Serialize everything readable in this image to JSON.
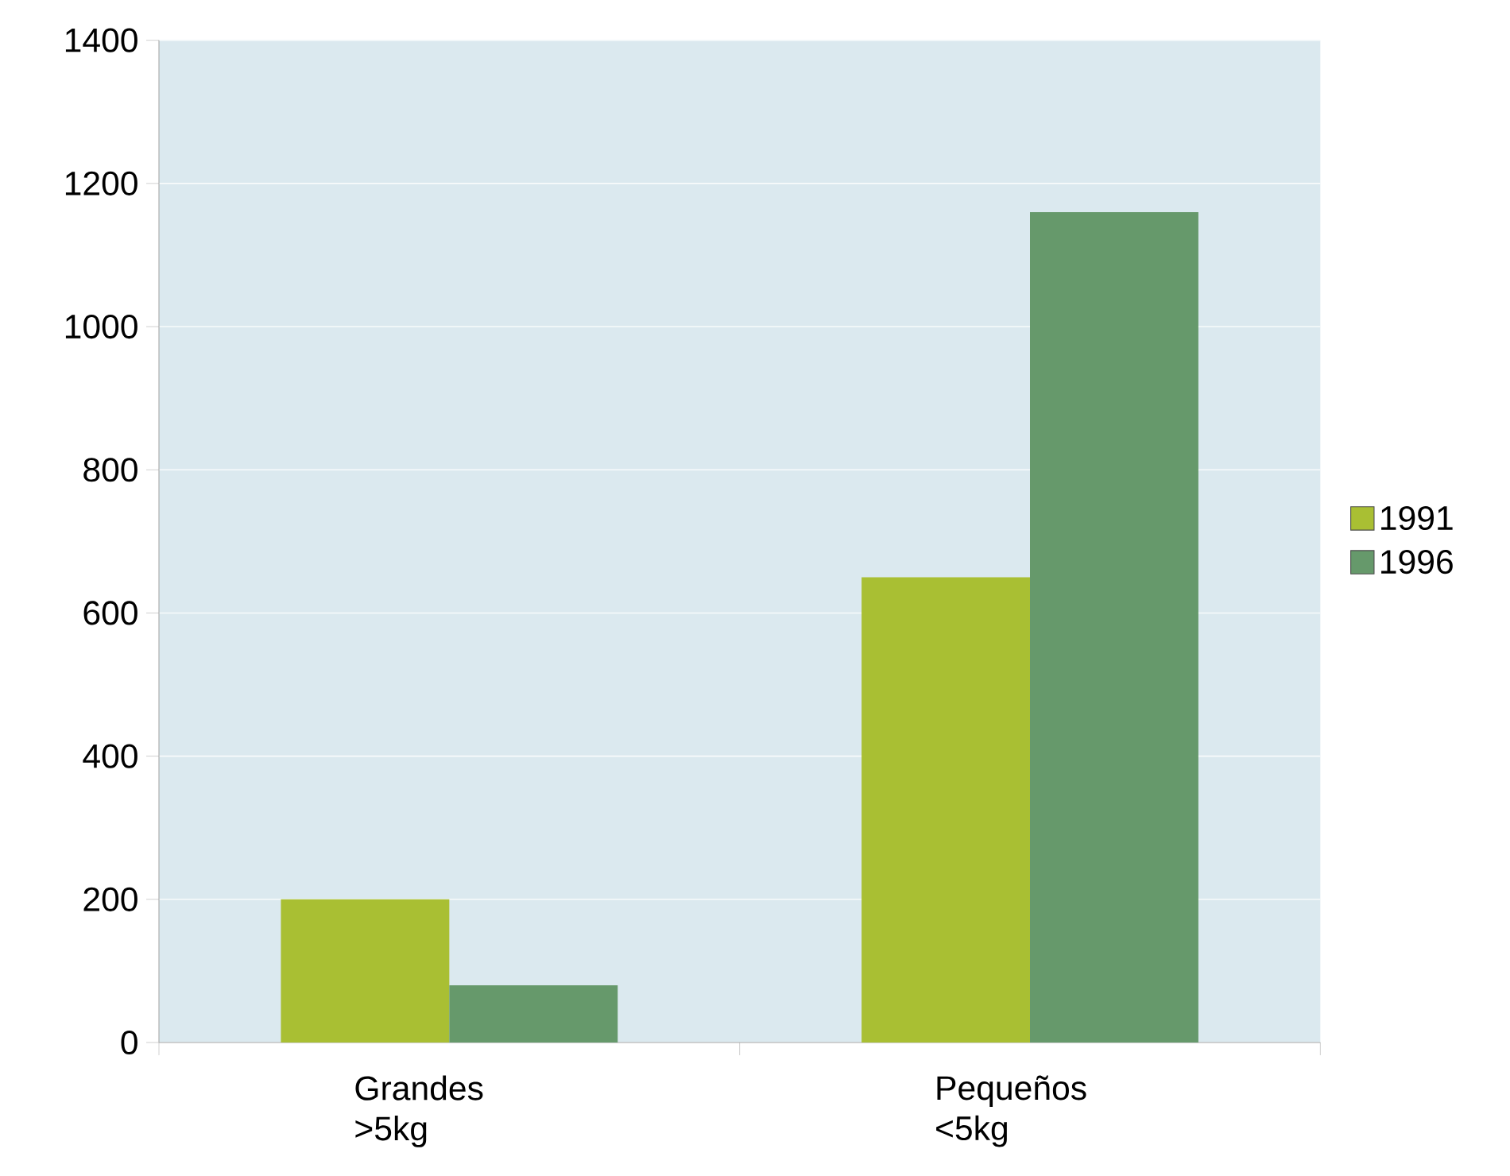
{
  "chart_data": {
    "type": "bar",
    "categories": [
      "Grandes >5kg",
      "Pequeños <5kg"
    ],
    "series": [
      {
        "name": "1991",
        "color": "#a9bf33",
        "values": [
          200,
          650
        ]
      },
      {
        "name": "1996",
        "color": "#66996b",
        "values": [
          80,
          1160
        ]
      }
    ],
    "ylim": [
      0,
      1400
    ],
    "yticks": [
      0,
      200,
      400,
      600,
      800,
      1000,
      1200,
      1400
    ],
    "grid": "y",
    "legend": "right"
  }
}
